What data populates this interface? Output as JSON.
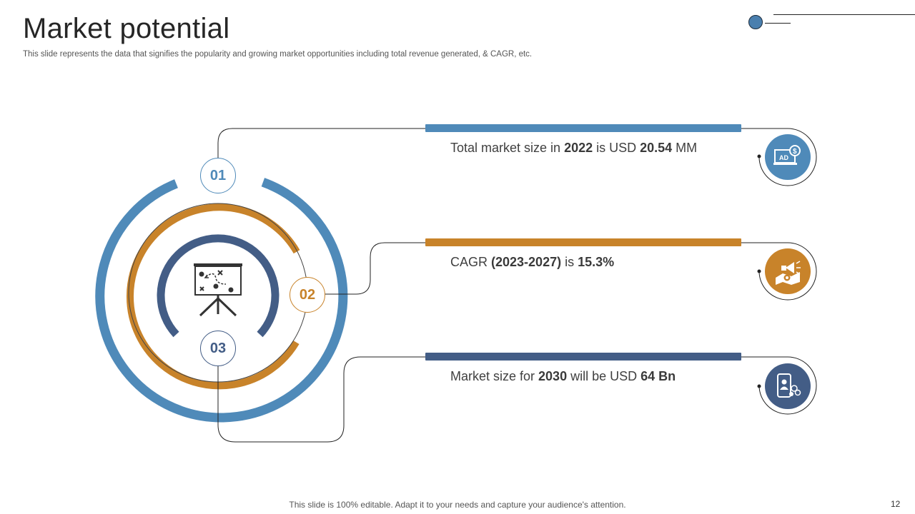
{
  "slide": {
    "title": "Market potential",
    "subtitle": "This slide represents the data that signifies the popularity and growing market opportunities including total revenue generated, & CAGR, etc.",
    "footer": "This slide is 100% editable. Adapt it to your needs and capture your audience's attention.",
    "page_number": "12"
  },
  "colors": {
    "blue": "#4f8ab9",
    "orange": "#c8832a",
    "navy": "#435d86"
  },
  "center_icon": "strategy-board-icon",
  "items": [
    {
      "number": "01",
      "color": "#4f8ab9",
      "icon": "ad-dollar-monitor-icon",
      "t1": "Total market size in ",
      "b1": "2022",
      "t2": " is USD ",
      "b2": "20.54",
      "t3": " MM"
    },
    {
      "number": "02",
      "color": "#c8832a",
      "icon": "megaphone-map-icon",
      "t1": "CAGR ",
      "b1": "(2023-2027)",
      "t2": " is ",
      "b2": "15.3%",
      "t3": ""
    },
    {
      "number": "03",
      "color": "#435d86",
      "icon": "mobile-users-icon",
      "t1": "Market size for ",
      "b1": "2030",
      "t2": " will be USD ",
      "b2": "64 Bn",
      "t3": ""
    }
  ]
}
